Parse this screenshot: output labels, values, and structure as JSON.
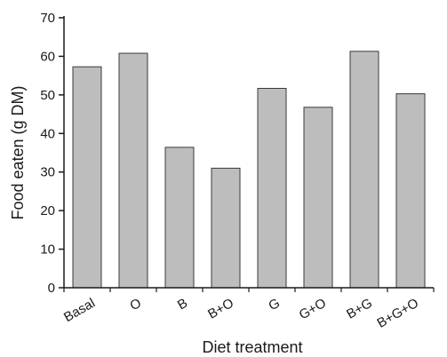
{
  "chart_data": {
    "type": "bar",
    "title": "",
    "xlabel": "Diet treatment",
    "ylabel": "Food eaten (g DM)",
    "categories": [
      "Basal",
      "O",
      "B",
      "B+O",
      "G",
      "G+O",
      "B+G",
      "B+G+O"
    ],
    "values": [
      57.3,
      60.8,
      36.4,
      31.0,
      51.7,
      46.8,
      61.3,
      50.3
    ],
    "ylim": [
      0,
      70
    ],
    "yticks": [
      0,
      10,
      20,
      30,
      40,
      50,
      60,
      70
    ],
    "grid": false,
    "legend": "none",
    "bar_color": "#bdbdbd",
    "bar_edge_color": "#3a3a3a"
  }
}
